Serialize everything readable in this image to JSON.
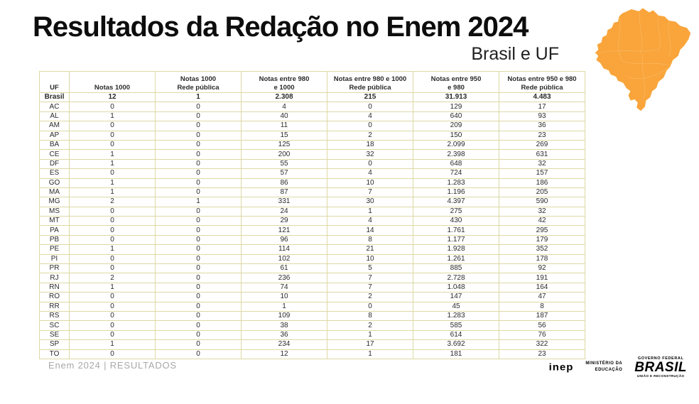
{
  "slide": {
    "title": "Resultados da Redação no Enem 2024",
    "subtitle": "Brasil e UF",
    "footer": "Enem 2024 | RESULTADOS"
  },
  "logos": {
    "inep": "inep",
    "mec_line1": "MINISTÉRIO DA",
    "mec_line2": "EDUCAÇÃO",
    "gov_top": "GOVERNO FEDERAL",
    "gov_main": "BRASIL",
    "gov_bottom": "UNIÃO E RECONSTRUÇÃO"
  },
  "colors": {
    "map_fill": "#F9A53B",
    "map_lines": "#FBBC6A",
    "table_border": "#DDD9A3",
    "title_text": "#0D0D0D",
    "footer_text": "#A8A8A8"
  },
  "chart_data": {
    "type": "table",
    "title": "Resultados da Redação no Enem 2024",
    "subtitle": "Brasil e UF",
    "columns": [
      "UF",
      "Notas 1000",
      "Notas 1000 Rede pública",
      "Notas entre 980 e 1000",
      "Notas entre 980 e 1000 Rede pública",
      "Notas entre 950 e 980",
      "Notas entre 950 e 980 Rede pública"
    ],
    "header_lines": [
      [
        "UF"
      ],
      [
        "Notas 1000"
      ],
      [
        "Notas 1000",
        "Rede pública"
      ],
      [
        "Notas entre 980",
        "e 1000"
      ],
      [
        "Notas entre 980 e 1000",
        "Rede pública"
      ],
      [
        "Notas entre 950",
        "e 980"
      ],
      [
        "Notas entre 950 e 980",
        "Rede pública"
      ]
    ],
    "bold_rows": [
      0
    ],
    "rows": [
      [
        "Brasil",
        "12",
        "1",
        "2.308",
        "215",
        "31.913",
        "4.483"
      ],
      [
        "AC",
        "0",
        "0",
        "4",
        "0",
        "129",
        "17"
      ],
      [
        "AL",
        "1",
        "0",
        "40",
        "4",
        "640",
        "93"
      ],
      [
        "AM",
        "0",
        "0",
        "11",
        "0",
        "209",
        "36"
      ],
      [
        "AP",
        "0",
        "0",
        "15",
        "2",
        "150",
        "23"
      ],
      [
        "BA",
        "0",
        "0",
        "125",
        "18",
        "2.099",
        "269"
      ],
      [
        "CE",
        "1",
        "0",
        "200",
        "32",
        "2.398",
        "631"
      ],
      [
        "DF",
        "1",
        "0",
        "55",
        "0",
        "648",
        "32"
      ],
      [
        "ES",
        "0",
        "0",
        "57",
        "4",
        "724",
        "157"
      ],
      [
        "GO",
        "1",
        "0",
        "86",
        "10",
        "1.283",
        "186"
      ],
      [
        "MA",
        "1",
        "0",
        "87",
        "7",
        "1.196",
        "205"
      ],
      [
        "MG",
        "2",
        "1",
        "331",
        "30",
        "4.397",
        "590"
      ],
      [
        "MS",
        "0",
        "0",
        "24",
        "1",
        "275",
        "32"
      ],
      [
        "MT",
        "0",
        "0",
        "29",
        "4",
        "430",
        "42"
      ],
      [
        "PA",
        "0",
        "0",
        "121",
        "14",
        "1.761",
        "295"
      ],
      [
        "PB",
        "0",
        "0",
        "96",
        "8",
        "1.177",
        "179"
      ],
      [
        "PE",
        "1",
        "0",
        "114",
        "21",
        "1.928",
        "352"
      ],
      [
        "PI",
        "0",
        "0",
        "102",
        "10",
        "1.261",
        "178"
      ],
      [
        "PR",
        "0",
        "0",
        "61",
        "5",
        "885",
        "92"
      ],
      [
        "RJ",
        "2",
        "0",
        "236",
        "7",
        "2.728",
        "191"
      ],
      [
        "RN",
        "1",
        "0",
        "74",
        "7",
        "1.048",
        "164"
      ],
      [
        "RO",
        "0",
        "0",
        "10",
        "2",
        "147",
        "47"
      ],
      [
        "RR",
        "0",
        "0",
        "1",
        "0",
        "45",
        "8"
      ],
      [
        "RS",
        "0",
        "0",
        "109",
        "8",
        "1.283",
        "187"
      ],
      [
        "SC",
        "0",
        "0",
        "38",
        "2",
        "585",
        "56"
      ],
      [
        "SE",
        "0",
        "0",
        "36",
        "1",
        "614",
        "76"
      ],
      [
        "SP",
        "1",
        "0",
        "234",
        "17",
        "3.692",
        "322"
      ],
      [
        "TO",
        "0",
        "0",
        "12",
        "1",
        "181",
        "23"
      ]
    ]
  }
}
